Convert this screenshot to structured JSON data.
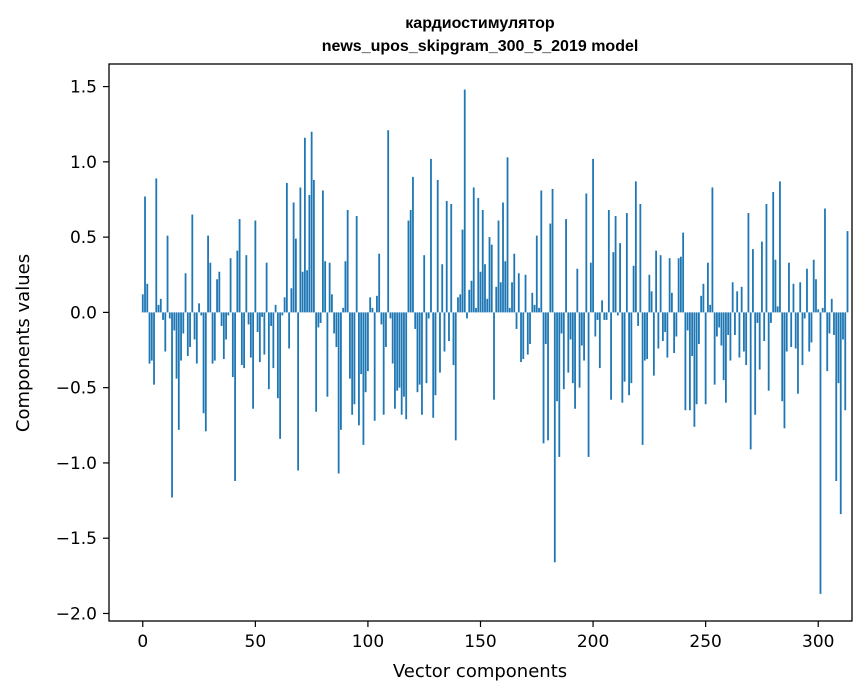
{
  "chart_data": {
    "type": "bar",
    "title": "кардиостимулятор",
    "subtitle": "news_upos_skipgram_300_5_2019 model",
    "xlabel": "Vector components",
    "ylabel": "Components values",
    "xlim": [
      -15,
      315
    ],
    "ylim": [
      -2.05,
      1.65
    ],
    "xticks": [
      0,
      50,
      100,
      150,
      200,
      250,
      300
    ],
    "xtick_labels": [
      "0",
      "50",
      "100",
      "150",
      "200",
      "250",
      "300"
    ],
    "yticks": [
      1.5,
      1.0,
      0.5,
      0.0,
      -0.5,
      -1.0,
      -1.5,
      -2.0
    ],
    "ytick_labels": [
      "1.5",
      "1.0",
      "0.5",
      "0.0",
      "−0.5",
      "−1.0",
      "−1.5",
      "−2.0"
    ],
    "color": "#1f77b4",
    "values": [
      0.12,
      0.77,
      0.19,
      -0.34,
      -0.32,
      -0.48,
      0.89,
      0.05,
      0.09,
      -0.05,
      -0.26,
      0.51,
      -0.04,
      -1.23,
      -0.12,
      -0.44,
      -0.78,
      -0.32,
      -0.14,
      0.26,
      -0.29,
      -0.23,
      0.65,
      -0.18,
      -0.34,
      0.06,
      -0.02,
      -0.67,
      -0.79,
      0.51,
      0.33,
      -0.34,
      -0.32,
      0.22,
      0.27,
      -0.09,
      -0.31,
      -0.18,
      -0.02,
      0.36,
      -0.43,
      -1.12,
      0.41,
      0.62,
      -0.35,
      -0.37,
      0.38,
      -0.08,
      -0.3,
      -0.64,
      0.61,
      -0.13,
      -0.33,
      -0.03,
      -0.28,
      0.33,
      -0.51,
      -0.09,
      -0.37,
      0.05,
      -0.57,
      -0.84,
      -0.02,
      0.1,
      0.86,
      -0.24,
      0.16,
      0.73,
      0.49,
      -1.05,
      0.83,
      0.27,
      1.16,
      0.28,
      0.78,
      1.2,
      0.88,
      -0.66,
      -0.1,
      -0.07,
      0.81,
      0.34,
      -0.56,
      0.33,
      0.12,
      -0.14,
      -0.23,
      -1.07,
      -0.78,
      0.03,
      0.34,
      0.68,
      -0.44,
      -0.68,
      -0.61,
      0.64,
      -0.75,
      -0.41,
      -0.88,
      -0.53,
      -0.39,
      0.1,
      0.03,
      -0.72,
      0.11,
      0.39,
      -0.08,
      -0.68,
      -0.23,
      1.21,
      -0.04,
      -0.34,
      -0.64,
      -0.52,
      -0.5,
      -0.68,
      -0.56,
      -0.71,
      0.61,
      0.68,
      0.9,
      -0.11,
      -0.53,
      -0.48,
      -0.68,
      0.38,
      -0.47,
      -0.04,
      1.02,
      -0.7,
      -0.55,
      0.88,
      -0.4,
      0.32,
      -0.26,
      0.74,
      -0.19,
      0.72,
      -0.35,
      -0.85,
      0.1,
      0.12,
      0.55,
      1.48,
      -0.04,
      0.15,
      0.21,
      0.83,
      0.03,
      0.76,
      0.27,
      0.68,
      0.32,
      0.09,
      0.5,
      0.45,
      -0.58,
      0.17,
      0.61,
      0.2,
      0.73,
      0.34,
      1.03,
      0.03,
      0.2,
      0.39,
      -0.11,
      0.26,
      -0.33,
      -0.31,
      0.25,
      -0.28,
      -0.21,
      0.13,
      0.05,
      0.51,
      0.03,
      0.81,
      -0.87,
      -0.21,
      -0.85,
      0.59,
      0.82,
      -1.66,
      -0.59,
      -0.96,
      -0.14,
      -0.51,
      0.62,
      -0.4,
      -0.18,
      -0.47,
      -0.64,
      0.29,
      -0.5,
      -0.22,
      -0.32,
      0.79,
      -0.96,
      0.33,
      1.02,
      -0.16,
      -0.05,
      -0.37,
      0.08,
      -0.05,
      -0.05,
      0.68,
      -0.58,
      0.4,
      0.64,
      -0.02,
      0.46,
      -0.6,
      -0.46,
      0.66,
      -0.55,
      -0.47,
      0.31,
      0.87,
      -0.09,
      0.72,
      -0.88,
      -0.32,
      -0.31,
      0.25,
      0.14,
      -0.42,
      0.41,
      -0.24,
      0.38,
      -0.19,
      -0.13,
      -0.3,
      0.36,
      0.13,
      -0.27,
      -0.16,
      0.36,
      0.37,
      0.53,
      -0.65,
      -0.12,
      -0.65,
      -0.29,
      -0.76,
      -0.61,
      -0.21,
      0.11,
      0.19,
      -0.61,
      0.33,
      0.05,
      0.83,
      -0.48,
      -0.16,
      -0.1,
      -0.22,
      -0.45,
      -0.6,
      -0.15,
      -0.32,
      0.2,
      -0.15,
      0.14,
      -0.3,
      0.17,
      -0.26,
      -0.35,
      0.66,
      -0.91,
      0.42,
      -0.68,
      -0.07,
      -0.38,
      0.47,
      -0.19,
      0.72,
      -0.52,
      -0.07,
      0.8,
      0.35,
      0.04,
      0.87,
      -0.59,
      -0.77,
      -0.26,
      0.33,
      -0.23,
      0.19,
      -0.24,
      -0.54,
      0.2,
      -0.35,
      -0.04,
      0.29,
      -0.26,
      -0.2,
      0.35,
      0.22,
      0.02,
      -1.87,
      0.03,
      0.69,
      -0.39,
      -0.14,
      0.09,
      -0.15,
      -1.12,
      -0.47,
      -1.34,
      -0.18,
      -0.65,
      0.54
    ]
  }
}
